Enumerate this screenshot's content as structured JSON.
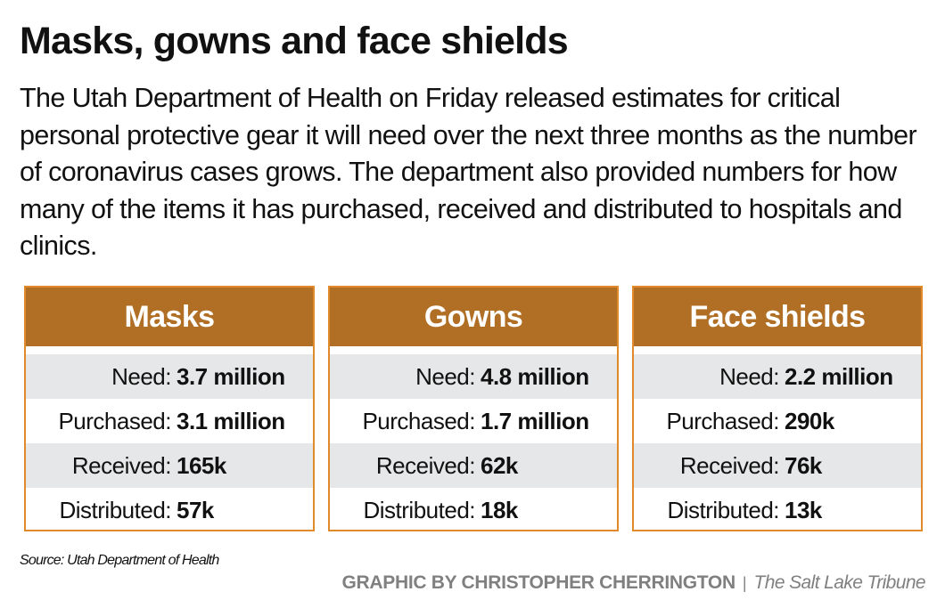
{
  "title": "Masks, gowns and face shields",
  "intro": "The Utah Department of Health on Friday released estimates for critical personal protective gear it will need over the next three months as the number of coronavirus cases grows. The department also provided numbers for how many of the items it has purchased, received and distributed to hospitals and clinics.",
  "colors": {
    "header": "#b06f24",
    "border": "#e08a2c",
    "stripe": "#e6e7e8"
  },
  "boxes": [
    {
      "title": "Masks",
      "rows": [
        {
          "label": "Need:",
          "value": "3.7 million"
        },
        {
          "label": "Purchased:",
          "value": "3.1 million"
        },
        {
          "label": "Received:",
          "value": "165k"
        },
        {
          "label": "Distributed:",
          "value": "57k"
        }
      ]
    },
    {
      "title": "Gowns",
      "rows": [
        {
          "label": "Need:",
          "value": "4.8 million"
        },
        {
          "label": "Purchased:",
          "value": "1.7 million"
        },
        {
          "label": "Received:",
          "value": "62k"
        },
        {
          "label": "Distributed:",
          "value": "18k"
        }
      ]
    },
    {
      "title": "Face shields",
      "rows": [
        {
          "label": "Need:",
          "value": "2.2 million"
        },
        {
          "label": "Purchased:",
          "value": "290k"
        },
        {
          "label": "Received:",
          "value": "76k"
        },
        {
          "label": "Distributed:",
          "value": "13k"
        }
      ]
    }
  ],
  "source": "Source: Utah Department of Health",
  "credit": {
    "graphic_by": "GRAPHIC BY CHRISTOPHER CHERRINGTON",
    "separator": "|",
    "publication": "The Salt Lake Tribune"
  }
}
